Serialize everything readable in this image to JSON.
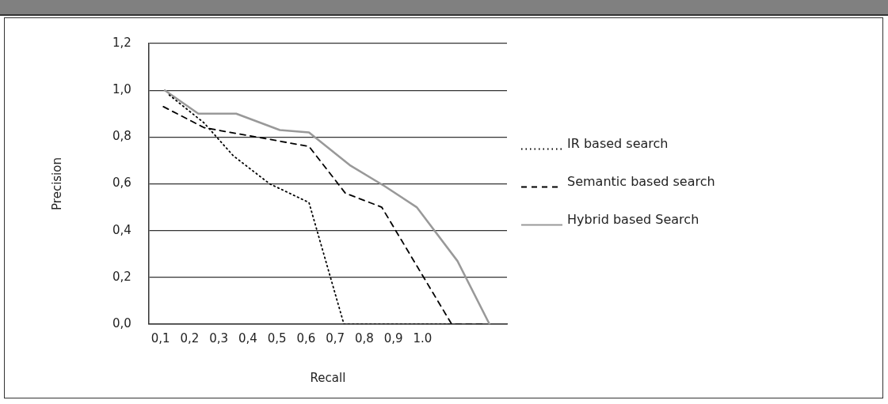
{
  "chart_data": {
    "type": "line",
    "xlabel": "Recall",
    "ylabel": "Precision",
    "xlim": [
      0.06,
      1.29
    ],
    "xticks": [
      {
        "value": 0.1,
        "label": "0,1"
      },
      {
        "value": 0.2,
        "label": "0,2"
      },
      {
        "value": 0.3,
        "label": "0,3"
      },
      {
        "value": 0.4,
        "label": "0,4"
      },
      {
        "value": 0.5,
        "label": "0,5"
      },
      {
        "value": 0.6,
        "label": "0,6"
      },
      {
        "value": 0.7,
        "label": "0,7"
      },
      {
        "value": 0.8,
        "label": "0,8"
      },
      {
        "value": 0.9,
        "label": "0,9"
      },
      {
        "value": 1.0,
        "label": "1.0"
      }
    ],
    "ylim": [
      0,
      1.2
    ],
    "yticks": [
      {
        "value": 0,
        "label": "0,0"
      },
      {
        "value": 0.2,
        "label": "0,2"
      },
      {
        "value": 0.4,
        "label": "0,4"
      },
      {
        "value": 0.6,
        "label": "0,6"
      },
      {
        "value": 0.8,
        "label": "0,8"
      },
      {
        "value": 1.0,
        "label": "1,0"
      },
      {
        "value": 1.2,
        "label": "1,2"
      }
    ],
    "grid": "y",
    "legend": "right",
    "marker": "none",
    "series": [
      {
        "name": "IR based search",
        "color": "#000000",
        "line_style": "dotted",
        "x": [
          0.13,
          0.25,
          0.35,
          0.475,
          0.61,
          0.73,
          1.1
        ],
        "values": [
          0.98,
          0.86,
          0.72,
          0.6,
          0.52,
          0,
          0
        ]
      },
      {
        "name": "Semantic based search",
        "color": "#000000",
        "line_style": "dashed",
        "x": [
          0.11,
          0.25,
          0.61,
          0.735,
          0.86,
          1.1,
          1.22
        ],
        "values": [
          0.93,
          0.84,
          0.76,
          0.56,
          0.5,
          0,
          0
        ]
      },
      {
        "name": "Hybrid based Search",
        "color": "#999999",
        "line_style": "solid",
        "x": [
          0.115,
          0.23,
          0.36,
          0.51,
          0.61,
          0.75,
          0.87,
          0.98,
          1.12,
          1.23
        ],
        "values": [
          1.0,
          0.9,
          0.9,
          0.83,
          0.82,
          0.68,
          0.59,
          0.5,
          0.27,
          0
        ]
      }
    ]
  }
}
